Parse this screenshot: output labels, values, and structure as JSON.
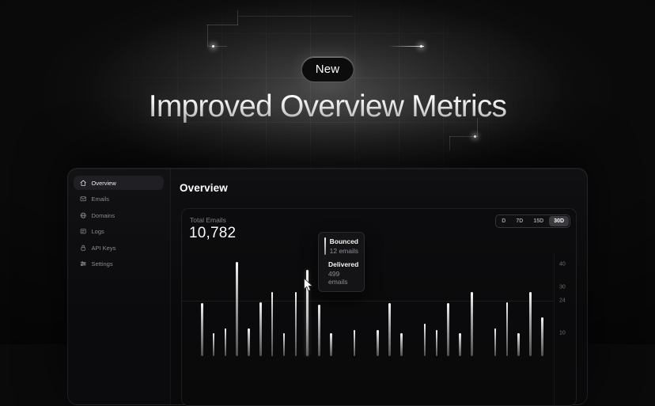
{
  "hero": {
    "badge_label": "New",
    "title": "Improved Overview Metrics"
  },
  "dashboard": {
    "sidebar": {
      "items": [
        {
          "label": "Overview",
          "icon": "home",
          "active": true
        },
        {
          "label": "Emails",
          "icon": "mail",
          "active": false
        },
        {
          "label": "Domains",
          "icon": "globe",
          "active": false
        },
        {
          "label": "Logs",
          "icon": "logs",
          "active": false
        },
        {
          "label": "API Keys",
          "icon": "lock",
          "active": false
        },
        {
          "label": "Settings",
          "icon": "sliders",
          "active": false
        }
      ]
    },
    "heading": "Overview",
    "card": {
      "stat_label": "Total Emails",
      "stat_value": "10,782",
      "range_options": [
        {
          "label": "D",
          "active": false
        },
        {
          "label": "7D",
          "active": false
        },
        {
          "label": "15D",
          "active": false
        },
        {
          "label": "30D",
          "active": true
        }
      ]
    },
    "tooltip": {
      "entries": [
        {
          "title": "Bounced",
          "value": "12 emails"
        },
        {
          "title": "Delivered",
          "value": "499 emails"
        }
      ]
    }
  },
  "colors": {
    "bar_gradient_top": "#ffffff",
    "bar_gradient_bottom": "#4d4d4d",
    "active_pill": "#202024",
    "panel_bg": "#0b0b0c"
  },
  "chart_data": {
    "type": "bar",
    "title": "Total Emails",
    "categories_note": "30 daily buckets (30D range selected), x labels not shown",
    "series": [
      {
        "name": "Emails",
        "values": [
          23,
          10,
          12,
          41,
          12,
          23.5,
          28,
          10,
          28,
          37.5,
          22.5,
          10,
          null,
          11.5,
          null,
          11.5,
          23,
          10,
          null,
          14,
          11.5,
          23,
          10,
          28,
          null,
          12,
          23.5,
          10,
          28,
          17
        ]
      }
    ],
    "highlight_index": 9,
    "highlight_tooltip": {
      "bounced": 12,
      "delivered": 499
    },
    "y_ticks": [
      40,
      30,
      24,
      10
    ],
    "grid_value": 24,
    "ylim": [
      0,
      45
    ],
    "legend": "none",
    "grid": "single horizontal line at 24"
  }
}
